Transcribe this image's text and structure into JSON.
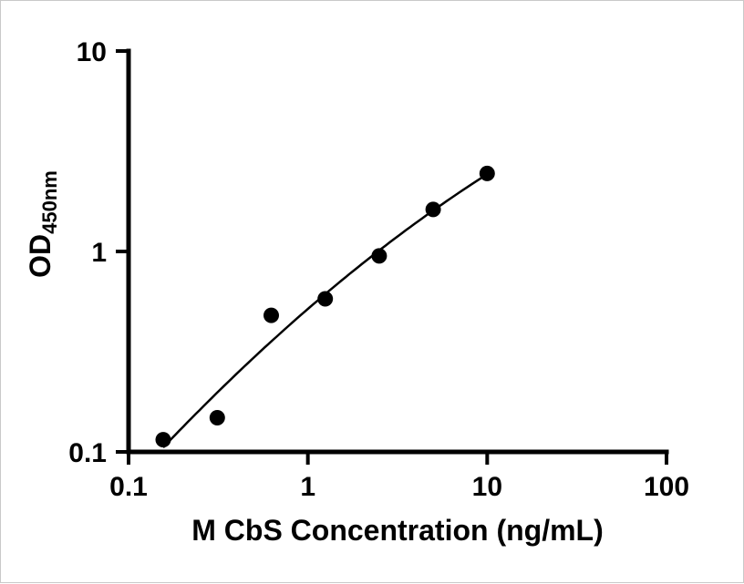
{
  "chart_data": {
    "type": "scatter",
    "title": "",
    "xlabel": "M CbS Concentration (ng/mL)",
    "ylabel": "OD450nm",
    "ylabel_main": "OD",
    "ylabel_sub": "450nm",
    "x_scale": "log",
    "y_scale": "log",
    "xlim": [
      0.1,
      100
    ],
    "ylim": [
      0.1,
      10
    ],
    "x_ticks": [
      0.1,
      1,
      10,
      100
    ],
    "x_tick_labels": [
      "0.1",
      "1",
      "10",
      "100"
    ],
    "y_ticks": [
      0.1,
      1,
      10
    ],
    "y_tick_labels": [
      "0.1",
      "1",
      "10"
    ],
    "grid": false,
    "legend": false,
    "marker": "circle",
    "marker_color": "#000000",
    "line_color": "#000000",
    "axis_color": "#000000",
    "x": [
      0.156,
      0.3125,
      0.625,
      1.25,
      2.5,
      5,
      10
    ],
    "y": [
      0.115,
      0.148,
      0.48,
      0.58,
      0.95,
      1.62,
      2.45
    ],
    "fit": "smooth curve through standard points (log-log quadratic)"
  }
}
